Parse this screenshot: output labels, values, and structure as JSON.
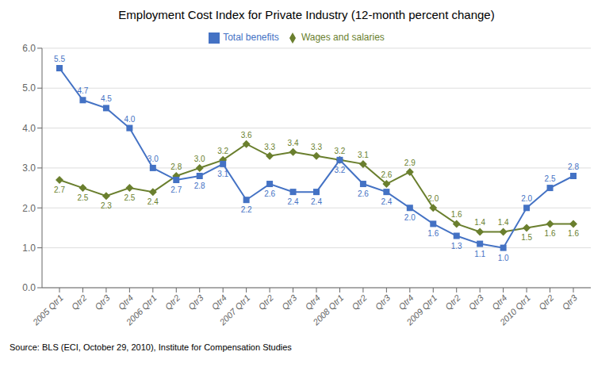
{
  "chart_data": {
    "type": "line",
    "title": "Employment Cost Index for Private Industry (12-month percent change)",
    "source": "Source: BLS (ECI, October 29, 2010), Institute for Compensation Studies",
    "categories": [
      "2005 Qtr1",
      "Qtr2",
      "Qtr3",
      "Qtr4",
      "2006 Qtr1",
      "Qtr2",
      "Qtr3",
      "Qtr4",
      "2007 Qtr1",
      "Qtr2",
      "Qtr3",
      "Qtr4",
      "2008 Qtr1",
      "Qtr2",
      "Qtr3",
      "Qtr4",
      "2009 Qtr1",
      "Qtr2",
      "Qtr3",
      "Qtr4",
      "2010 Qtr1",
      "Qtr2",
      "Qtr3"
    ],
    "series": [
      {
        "name": "Wages and salaries",
        "color": "#6a7f2e",
        "marker": "diamond",
        "values": [
          2.7,
          2.5,
          2.3,
          2.5,
          2.4,
          2.8,
          3.0,
          3.2,
          3.6,
          3.3,
          3.4,
          3.3,
          3.2,
          3.1,
          2.6,
          2.9,
          2.0,
          1.6,
          1.4,
          1.4,
          1.5,
          1.6,
          1.6
        ],
        "value_labels": [
          "2.7",
          "2.5",
          "2.3",
          "2.5",
          "2.4",
          "2.8",
          "3.0",
          "3.2",
          "3.6",
          "3.3",
          "3.4",
          "3.3",
          "3.2",
          "3.1",
          "2.6",
          "2.9",
          "2.0",
          "1.6",
          "1.4",
          "1.4",
          "1.5",
          "1.6",
          "1.6"
        ]
      },
      {
        "name": "Total benefits",
        "color": "#4472c4",
        "marker": "square",
        "values": [
          5.5,
          4.7,
          4.5,
          4.0,
          3.0,
          2.7,
          2.8,
          3.1,
          2.2,
          2.6,
          2.4,
          2.4,
          3.2,
          2.6,
          2.4,
          2.0,
          1.6,
          1.3,
          1.1,
          1.0,
          2.0,
          2.5,
          2.8
        ],
        "value_labels": [
          "5.5",
          "4.7",
          "4.5",
          "4.0",
          "3.0",
          "2.7",
          "2.8",
          "3.1",
          "2.2",
          "2.6",
          "2.4",
          "2.4",
          "3.2",
          "2.6",
          "2.4",
          "2.0",
          "1.6",
          "1.3",
          "1.1",
          "1.0",
          "2.0",
          "2.5",
          "2.8"
        ]
      }
    ],
    "ylim": [
      0.0,
      6.0
    ],
    "yticks": [
      {
        "value": 0.0,
        "label": "0.0"
      },
      {
        "value": 1.0,
        "label": "1.0"
      },
      {
        "value": 2.0,
        "label": "2.0"
      },
      {
        "value": 3.0,
        "label": "3.0"
      },
      {
        "value": 4.0,
        "label": "4.0"
      },
      {
        "value": 5.0,
        "label": "5.0"
      },
      {
        "value": 6.0,
        "label": "6.0"
      }
    ],
    "grid": true,
    "legend": "top",
    "data_labels": true
  }
}
